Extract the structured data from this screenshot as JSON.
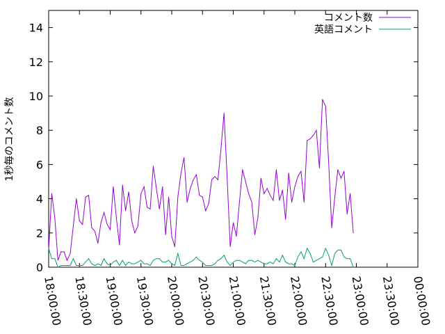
{
  "chart_data": {
    "type": "line",
    "ylabel": "1秒毎のコメント数",
    "ylim": [
      0,
      15
    ],
    "yticks": [
      0,
      2,
      4,
      6,
      8,
      10,
      12,
      14
    ],
    "xticks": [
      "18:00:00",
      "18:30:00",
      "19:00:00",
      "19:30:00",
      "20:00:00",
      "20:30:00",
      "21:00:00",
      "21:30:00",
      "22:00:00",
      "22:30:00",
      "23:00:00",
      "23:30:00",
      "00:00:00"
    ],
    "xlim_minutes": [
      0,
      360
    ],
    "x_interval_minutes": 3,
    "legend_position": "top-right",
    "grid": false,
    "series": [
      {
        "name": "コメント数",
        "color": "#9400d3",
        "values": [
          1.0,
          4.3,
          2.9,
          0.4,
          0.9,
          0.9,
          0.4,
          0.8,
          2.4,
          4.0,
          2.7,
          2.5,
          4.1,
          4.2,
          2.3,
          2.1,
          1.4,
          2.6,
          3.2,
          2.5,
          2.2,
          4.7,
          2.9,
          1.3,
          4.8,
          3.3,
          4.4,
          2.7,
          2.0,
          2.4,
          4.3,
          4.7,
          3.5,
          3.4,
          5.9,
          4.6,
          3.4,
          4.7,
          1.9,
          4.1,
          1.8,
          1.2,
          4.1,
          5.5,
          6.4,
          3.8,
          4.6,
          5.1,
          5.4,
          4.2,
          4.1,
          3.3,
          3.7,
          5.1,
          5.3,
          5.1,
          6.9,
          9.0,
          5.3,
          1.2,
          2.6,
          1.8,
          3.8,
          5.7,
          5.0,
          4.3,
          3.8,
          1.9,
          2.9,
          5.2,
          4.3,
          4.6,
          4.2,
          3.9,
          5.7,
          3.9,
          4.5,
          2.8,
          5.5,
          3.8,
          4.7,
          5.3,
          5.6,
          3.8,
          7.4,
          7.5,
          7.7,
          8.0,
          5.8,
          9.8,
          9.4,
          6.1,
          2.3,
          4.1,
          5.7,
          5.2,
          5.6,
          3.1,
          4.3,
          2.0
        ]
      },
      {
        "name": "英語コメント",
        "color": "#009e73",
        "values": [
          1.1,
          0.5,
          0.5,
          0.0,
          0.1,
          0.1,
          0.1,
          0.1,
          0.5,
          0.1,
          0.1,
          0.1,
          0.3,
          0.5,
          0.2,
          0.1,
          0.2,
          0.1,
          0.5,
          0.2,
          0.1,
          0.3,
          0.4,
          0.1,
          0.4,
          0.1,
          0.3,
          0.2,
          0.2,
          0.3,
          0.4,
          0.2,
          0.2,
          0.1,
          0.4,
          0.5,
          0.5,
          0.3,
          0.3,
          0.4,
          0.2,
          0.1,
          0.8,
          0.1,
          0.1,
          0.2,
          0.3,
          0.4,
          0.6,
          0.4,
          0.3,
          0.1,
          0.1,
          0.1,
          0.2,
          0.4,
          0.5,
          0.7,
          0.3,
          0.1,
          0.3,
          0.4,
          0.4,
          0.3,
          0.2,
          0.4,
          0.4,
          0.3,
          0.4,
          0.3,
          0.2,
          0.2,
          0.3,
          0.2,
          0.5,
          0.3,
          0.7,
          0.3,
          0.2,
          0.2,
          0.1,
          0.6,
          0.9,
          0.5,
          1.1,
          0.8,
          0.3,
          0.4,
          0.5,
          0.6,
          1.1,
          0.7,
          0.1,
          0.8,
          1.0,
          1.0,
          0.6,
          0.5,
          0.5,
          0.0
        ]
      }
    ]
  }
}
